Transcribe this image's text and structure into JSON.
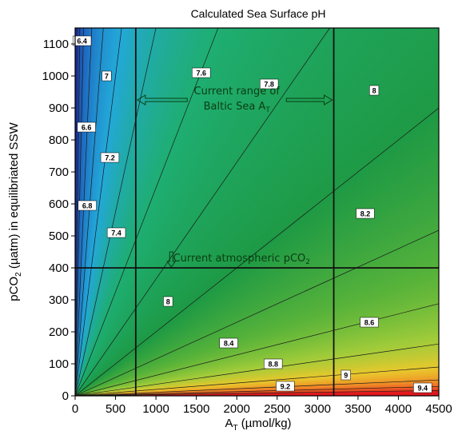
{
  "chart_data": {
    "type": "heatmap",
    "title": "Calculated Sea Surface pH",
    "xlabel": "A",
    "xlabel_sub": "T",
    "xlabel_unit": " (µmol/kg)",
    "ylabel": "pCO",
    "ylabel_sub": "2",
    "ylabel_unit": " (µatm) in equilibriated SSW",
    "xlim": [
      0,
      4500
    ],
    "ylim": [
      0,
      1150
    ],
    "x_ticks": [
      0,
      500,
      1000,
      1500,
      2000,
      2500,
      3000,
      3500,
      4000,
      4500
    ],
    "y_ticks": [
      0,
      100,
      200,
      300,
      400,
      500,
      600,
      700,
      800,
      900,
      1000,
      1100
    ],
    "colorscale": [
      {
        "ph": 6.0,
        "color": "#1b2a8a"
      },
      {
        "ph": 6.7,
        "color": "#1f6fc4"
      },
      {
        "ph": 7.2,
        "color": "#23a8d8"
      },
      {
        "ph": 7.6,
        "color": "#1fae72"
      },
      {
        "ph": 8.0,
        "color": "#1f9a45"
      },
      {
        "ph": 8.3,
        "color": "#58b33a"
      },
      {
        "ph": 8.55,
        "color": "#9ecb3a"
      },
      {
        "ph": 8.8,
        "color": "#e9c82c"
      },
      {
        "ph": 9.1,
        "color": "#f07a25"
      },
      {
        "ph": 9.5,
        "color": "#e0161e"
      }
    ],
    "contours": [
      {
        "label": "6.4",
        "slope": 20.0,
        "label_x": 85,
        "label_y": 1110
      },
      {
        "label": "6.6",
        "slope": 11.0,
        "label_x": 140,
        "label_y": 840
      },
      {
        "label": "6.8",
        "slope": 5.6,
        "label_x": 150,
        "label_y": 595
      },
      {
        "label": "7",
        "slope": 3.3,
        "label_x": 390,
        "label_y": 1000
      },
      {
        "label": "7.2",
        "slope": 2.0,
        "label_x": 430,
        "label_y": 745
      },
      {
        "label": "7.4",
        "slope": 1.15,
        "label_x": 510,
        "label_y": 510
      },
      {
        "label": "7.6",
        "slope": 0.65,
        "label_x": 1560,
        "label_y": 1010
      },
      {
        "label": "7.8",
        "slope": 0.365,
        "label_x": 2400,
        "label_y": 975
      },
      {
        "label": "8",
        "slope": 0.2,
        "label_x": 3700,
        "label_y": 955
      },
      {
        "label": "8",
        "slope": 0.2,
        "label_x": 1150,
        "label_y": 295
      },
      {
        "label": "8.2",
        "slope": 0.115,
        "label_x": 3590,
        "label_y": 570
      },
      {
        "label": "8.4",
        "slope": 0.064,
        "label_x": 1900,
        "label_y": 165
      },
      {
        "label": "8.6",
        "slope": 0.036,
        "label_x": 3640,
        "label_y": 230
      },
      {
        "label": "8.8",
        "slope": 0.02,
        "label_x": 2450,
        "label_y": 100
      },
      {
        "label": "9",
        "slope": 0.011,
        "label_x": 3350,
        "label_y": 65
      },
      {
        "label": "9.2",
        "slope": 0.0065,
        "label_x": 2600,
        "label_y": 30
      },
      {
        "label": "9.4",
        "slope": 0.0037,
        "label_x": 4300,
        "label_y": 25
      }
    ],
    "reference_lines": {
      "vertical": [
        750,
        3200
      ],
      "horizontal": [
        400
      ]
    },
    "annotations": [
      {
        "text_line1": "Current range of",
        "text_line2": "Baltic Sea A",
        "text_line2_sub": "T",
        "x": 2000,
        "y": 920
      },
      {
        "text": "Current atmospheric pCO",
        "text_sub": "2",
        "x": 2060,
        "y": 430
      }
    ],
    "grid": false,
    "legend": "none"
  }
}
